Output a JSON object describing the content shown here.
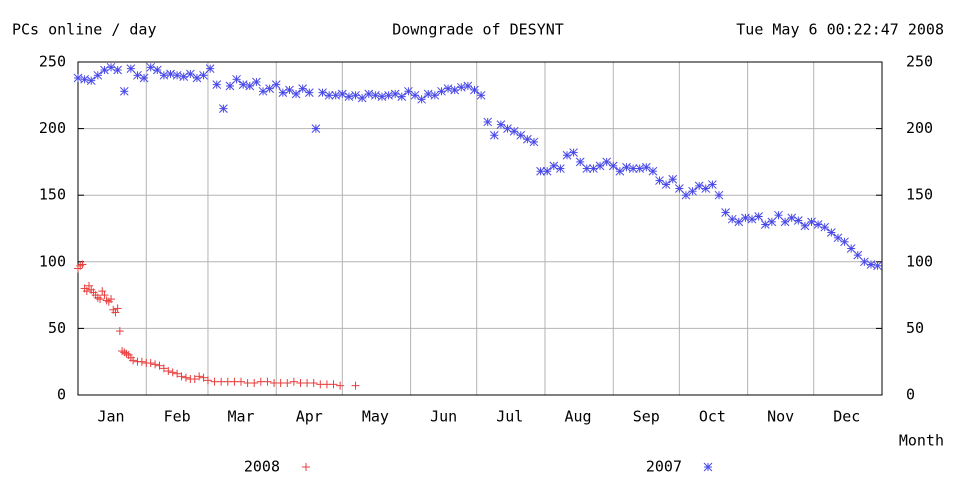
{
  "chart_data": {
    "type": "scatter",
    "title": "Downgrade of DESYNT",
    "ylabel": "PCs online / day",
    "timestamp": "Tue May 6 00:22:47 2008",
    "xlabel": "Month",
    "xlim": [
      1,
      366
    ],
    "xticks": [
      {
        "value": 16,
        "label": "Jan"
      },
      {
        "value": 46,
        "label": "Feb"
      },
      {
        "value": 75,
        "label": "Mar"
      },
      {
        "value": 106,
        "label": "Apr"
      },
      {
        "value": 136,
        "label": "May"
      },
      {
        "value": 167,
        "label": "Jun"
      },
      {
        "value": 197,
        "label": "Jul"
      },
      {
        "value": 228,
        "label": "Aug"
      },
      {
        "value": 259,
        "label": "Sep"
      },
      {
        "value": 289,
        "label": "Oct"
      },
      {
        "value": 320,
        "label": "Nov"
      },
      {
        "value": 350,
        "label": "Dec"
      }
    ],
    "grid_x": [
      32,
      60,
      91,
      121,
      152,
      182,
      213,
      244,
      274,
      305,
      335
    ],
    "ylim": [
      0,
      250
    ],
    "yticks": [
      0,
      50,
      100,
      150,
      200,
      250
    ],
    "y2lim": [
      0,
      250
    ],
    "y2ticks": [
      0,
      50,
      100,
      150,
      200,
      250
    ],
    "grid": true,
    "series": [
      {
        "name": "2008",
        "marker": "plus",
        "color": "#e83c3c",
        "x": [
          1,
          2,
          3,
          4,
          5,
          6,
          7,
          8,
          9,
          10,
          11,
          12,
          13,
          14,
          15,
          16,
          17,
          18,
          19,
          20,
          21,
          22,
          23,
          24,
          25,
          26,
          28,
          30,
          32,
          34,
          36,
          38,
          40,
          42,
          44,
          46,
          48,
          50,
          52,
          54,
          56,
          58,
          60,
          63,
          66,
          69,
          72,
          75,
          78,
          81,
          84,
          87,
          90,
          93,
          96,
          99,
          102,
          105,
          108,
          111,
          114,
          117,
          120,
          127
        ],
        "values": [
          95,
          97,
          98,
          80,
          78,
          82,
          79,
          77,
          75,
          73,
          72,
          78,
          75,
          71,
          70,
          72,
          64,
          62,
          65,
          48,
          33,
          32,
          31,
          30,
          28,
          26,
          25,
          25,
          24,
          24,
          23,
          22,
          20,
          18,
          17,
          16,
          14,
          13,
          12,
          12,
          14,
          13,
          11,
          10,
          10,
          10,
          10,
          10,
          9,
          9,
          10,
          10,
          9,
          9,
          9,
          10,
          9,
          9,
          9,
          8,
          8,
          8,
          7,
          7
        ]
      },
      {
        "name": "2007",
        "marker": "star",
        "color": "#4848e8",
        "x": [
          1,
          4,
          7,
          10,
          13,
          16,
          19,
          22,
          25,
          28,
          31,
          34,
          37,
          40,
          43,
          46,
          49,
          52,
          55,
          58,
          61,
          64,
          67,
          70,
          73,
          76,
          79,
          82,
          85,
          88,
          91,
          94,
          97,
          100,
          103,
          106,
          109,
          112,
          115,
          118,
          121,
          124,
          127,
          130,
          133,
          136,
          139,
          142,
          145,
          148,
          151,
          154,
          157,
          160,
          163,
          166,
          169,
          172,
          175,
          178,
          181,
          184,
          187,
          190,
          193,
          196,
          199,
          202,
          205,
          208,
          211,
          214,
          217,
          220,
          223,
          226,
          229,
          232,
          235,
          238,
          241,
          244,
          247,
          250,
          253,
          256,
          259,
          262,
          265,
          268,
          271,
          274,
          277,
          280,
          283,
          286,
          289,
          292,
          295,
          298,
          301,
          304,
          307,
          310,
          313,
          316,
          319,
          322,
          325,
          328,
          331,
          334,
          337,
          340,
          343,
          346,
          349,
          352,
          355,
          358,
          361,
          364
        ],
        "values": [
          238,
          237,
          236,
          240,
          244,
          246,
          244,
          228,
          245,
          240,
          238,
          246,
          244,
          240,
          241,
          240,
          239,
          241,
          238,
          240,
          245,
          233,
          215,
          232,
          237,
          233,
          232,
          235,
          228,
          230,
          233,
          227,
          229,
          226,
          230,
          227,
          200,
          227,
          225,
          225,
          226,
          224,
          225,
          223,
          226,
          225,
          224,
          225,
          226,
          224,
          228,
          225,
          222,
          226,
          225,
          228,
          230,
          229,
          231,
          232,
          229,
          225,
          205,
          195,
          203,
          200,
          198,
          195,
          192,
          190,
          168,
          168,
          172,
          170,
          180,
          182,
          175,
          170,
          170,
          172,
          175,
          172,
          168,
          171,
          170,
          170,
          171,
          168,
          161,
          158,
          162,
          155,
          150,
          153,
          157,
          155,
          158,
          150,
          137,
          132,
          130,
          133,
          132,
          134,
          128,
          130,
          135,
          130,
          133,
          131,
          127,
          130,
          128,
          126,
          122,
          118,
          115,
          110,
          105,
          100,
          98,
          97
        ]
      }
    ]
  }
}
